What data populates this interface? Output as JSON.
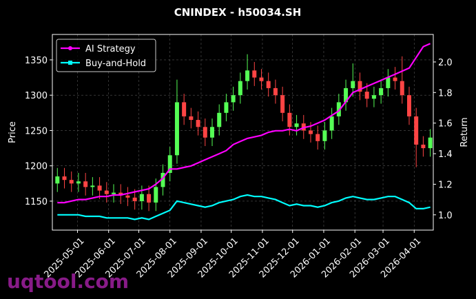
{
  "chart_data": {
    "type": "candlestick",
    "title": "CNINDEX - h50034.SH",
    "ylabel": "Price",
    "y2label": "Return",
    "watermark": "uqtool.com",
    "grid": true,
    "legend": "upper left",
    "x": [
      "2025-04-11",
      "2025-04-18",
      "2025-04-25",
      "2025-05-02",
      "2025-05-09",
      "2025-05-16",
      "2025-05-23",
      "2025-05-30",
      "2025-06-06",
      "2025-06-13",
      "2025-06-20",
      "2025-06-27",
      "2025-07-04",
      "2025-07-11",
      "2025-07-18",
      "2025-07-25",
      "2025-08-01",
      "2025-08-08",
      "2025-08-15",
      "2025-08-22",
      "2025-08-29",
      "2025-09-05",
      "2025-09-12",
      "2025-09-19",
      "2025-09-26",
      "2025-10-03",
      "2025-10-10",
      "2025-10-17",
      "2025-10-24",
      "2025-10-31",
      "2025-11-07",
      "2025-11-14",
      "2025-11-21",
      "2025-11-28",
      "2025-12-05",
      "2025-12-12",
      "2025-12-19",
      "2025-12-26",
      "2026-01-02",
      "2026-01-09",
      "2026-01-16",
      "2026-01-23",
      "2026-01-30",
      "2026-02-06",
      "2026-02-13",
      "2026-02-20",
      "2026-02-27",
      "2026-03-06",
      "2026-03-13",
      "2026-03-20",
      "2026-03-27",
      "2026-04-03",
      "2026-04-10",
      "2026-04-17"
    ],
    "xlim": [
      "2025-04-06",
      "2026-04-20"
    ],
    "xticks": [
      "2025-05-01",
      "2025-06-01",
      "2025-07-01",
      "2025-08-01",
      "2025-09-01",
      "2025-10-01",
      "2025-11-01",
      "2025-12-01",
      "2026-01-01",
      "2026-02-01",
      "2026-03-01",
      "2026-04-01"
    ],
    "ylim": [
      1109,
      1386
    ],
    "yticks": [
      1150,
      1200,
      1250,
      1300,
      1350
    ],
    "y2lim": [
      0.9,
      2.18
    ],
    "y2ticks": [
      {
        "value": 1,
        "label": "1.0"
      },
      1.2,
      1.4,
      1.6,
      1.8,
      {
        "value": 2,
        "label": "2.0"
      }
    ],
    "ohlc": {
      "up_color": "#55ff55",
      "down_color": "#ff4444",
      "open": [
        1175,
        1185,
        1180,
        1175,
        1178,
        1170,
        1172,
        1165,
        1160,
        1162,
        1158,
        1155,
        1150,
        1160,
        1148,
        1170,
        1190,
        1215,
        1290,
        1270,
        1265,
        1255,
        1240,
        1255,
        1275,
        1290,
        1300,
        1320,
        1335,
        1325,
        1320,
        1310,
        1300,
        1275,
        1255,
        1260,
        1250,
        1245,
        1235,
        1250,
        1270,
        1290,
        1310,
        1320,
        1305,
        1295,
        1300,
        1310,
        1325,
        1320,
        1300,
        1270,
        1230,
        1225
      ],
      "high": [
        1197,
        1197,
        1192,
        1190,
        1190,
        1184,
        1184,
        1177,
        1174,
        1174,
        1170,
        1167,
        1172,
        1172,
        1182,
        1202,
        1227,
        1322,
        1302,
        1282,
        1277,
        1267,
        1267,
        1287,
        1302,
        1312,
        1332,
        1358,
        1347,
        1337,
        1332,
        1322,
        1312,
        1287,
        1272,
        1272,
        1262,
        1257,
        1262,
        1282,
        1302,
        1322,
        1345,
        1332,
        1317,
        1312,
        1322,
        1337,
        1340,
        1355,
        1312,
        1282,
        1242,
        1252
      ],
      "low": [
        1163,
        1168,
        1163,
        1163,
        1158,
        1158,
        1153,
        1148,
        1148,
        1146,
        1143,
        1138,
        1138,
        1136,
        1136,
        1158,
        1178,
        1203,
        1258,
        1253,
        1243,
        1228,
        1228,
        1243,
        1263,
        1278,
        1288,
        1308,
        1313,
        1308,
        1298,
        1288,
        1263,
        1243,
        1243,
        1238,
        1233,
        1223,
        1223,
        1238,
        1258,
        1278,
        1298,
        1293,
        1283,
        1283,
        1288,
        1298,
        1308,
        1288,
        1258,
        1198,
        1213,
        1213
      ],
      "close": [
        1185,
        1180,
        1175,
        1178,
        1170,
        1172,
        1165,
        1160,
        1162,
        1158,
        1155,
        1150,
        1160,
        1148,
        1170,
        1190,
        1215,
        1290,
        1270,
        1265,
        1255,
        1240,
        1255,
        1275,
        1290,
        1300,
        1320,
        1335,
        1325,
        1320,
        1310,
        1300,
        1275,
        1255,
        1260,
        1250,
        1245,
        1235,
        1250,
        1270,
        1290,
        1310,
        1320,
        1305,
        1295,
        1300,
        1310,
        1325,
        1320,
        1300,
        1270,
        1230,
        1225,
        1240
      ]
    },
    "series": [
      {
        "name": "AI Strategy",
        "color": "#ff00ff",
        "axis": "y2",
        "marker": "circle",
        "values": [
          1.08,
          1.08,
          1.09,
          1.1,
          1.1,
          1.11,
          1.12,
          1.12,
          1.13,
          1.13,
          1.14,
          1.15,
          1.16,
          1.17,
          1.2,
          1.24,
          1.3,
          1.3,
          1.31,
          1.32,
          1.34,
          1.36,
          1.38,
          1.4,
          1.42,
          1.46,
          1.48,
          1.5,
          1.51,
          1.52,
          1.54,
          1.55,
          1.55,
          1.56,
          1.55,
          1.57,
          1.58,
          1.6,
          1.62,
          1.65,
          1.68,
          1.74,
          1.8,
          1.82,
          1.84,
          1.86,
          1.88,
          1.9,
          1.92,
          1.94,
          1.96,
          2.03,
          2.1,
          2.12
        ]
      },
      {
        "name": "Buy-and-Hold",
        "color": "#00ffff",
        "axis": "y2",
        "marker": "square",
        "values": [
          1.0,
          1.0,
          1.0,
          1.0,
          0.99,
          0.99,
          0.99,
          0.98,
          0.98,
          0.98,
          0.98,
          0.97,
          0.98,
          0.97,
          0.99,
          1.01,
          1.03,
          1.09,
          1.08,
          1.07,
          1.06,
          1.05,
          1.06,
          1.08,
          1.09,
          1.1,
          1.12,
          1.13,
          1.12,
          1.12,
          1.11,
          1.1,
          1.08,
          1.06,
          1.07,
          1.06,
          1.06,
          1.05,
          1.06,
          1.08,
          1.09,
          1.11,
          1.12,
          1.11,
          1.1,
          1.1,
          1.11,
          1.12,
          1.12,
          1.1,
          1.08,
          1.04,
          1.04,
          1.05
        ]
      }
    ]
  }
}
